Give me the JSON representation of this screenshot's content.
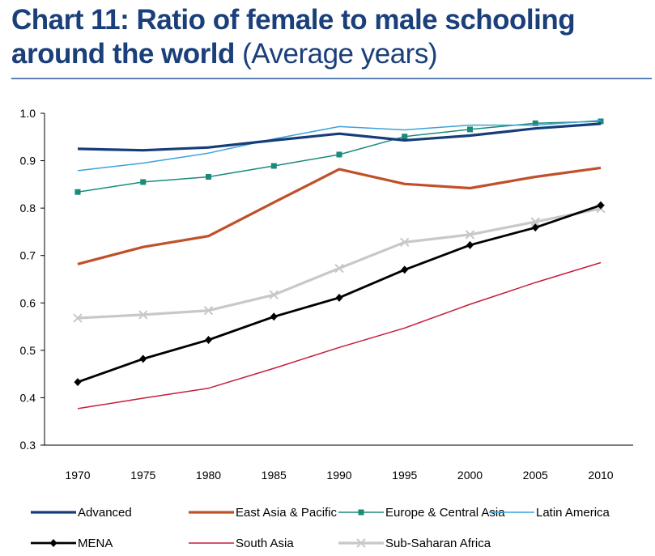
{
  "header": {
    "title_bold_1": "Chart 11: Ratio of female to male schooling",
    "title_bold_2": "around the world",
    "title_normal_2": "(Average years)"
  },
  "chart_data": {
    "type": "line",
    "title": "Chart 11: Ratio of female to male schooling around the world (Average years)",
    "x": [
      1970,
      1975,
      1980,
      1985,
      1990,
      1995,
      2000,
      2005,
      2010
    ],
    "x_tick_labels": [
      "1970",
      "1975",
      "1980",
      "1985",
      "1990",
      "1995",
      "2000",
      "2005",
      "2010"
    ],
    "ylim": [
      0.3,
      1.0
    ],
    "y_tick_labels": [
      "0.3",
      "0.4",
      "0.5",
      "0.6",
      "0.7",
      "0.8",
      "0.9",
      "1.0"
    ],
    "y_ticks": [
      0.3,
      0.4,
      0.5,
      0.6,
      0.7,
      0.8,
      0.9,
      1.0
    ],
    "grid": false,
    "legend_position": "bottom",
    "series": [
      {
        "name": "Advanced",
        "color": "#163d7a",
        "marker": "none",
        "values": [
          0.925,
          0.922,
          0.928,
          0.943,
          0.957,
          0.943,
          0.953,
          0.968,
          0.978
        ]
      },
      {
        "name": "East Asia & Pacific",
        "color": "#c0502a",
        "marker": "none",
        "values": [
          0.682,
          0.718,
          0.741,
          0.812,
          0.882,
          0.851,
          0.842,
          0.866,
          0.885
        ]
      },
      {
        "name": "Europe & Central Asia",
        "color": "#1a8a7a",
        "marker": "square",
        "values": [
          0.834,
          0.855,
          0.866,
          0.889,
          0.913,
          0.951,
          0.966,
          0.979,
          0.983
        ]
      },
      {
        "name": "Latin America",
        "color": "#3aa3d8",
        "marker": "none",
        "values": [
          0.879,
          0.895,
          0.916,
          0.946,
          0.972,
          0.965,
          0.975,
          0.975,
          0.985
        ]
      },
      {
        "name": "MENA",
        "color": "#000000",
        "marker": "diamond",
        "values": [
          0.433,
          0.482,
          0.522,
          0.571,
          0.611,
          0.67,
          0.722,
          0.759,
          0.806
        ]
      },
      {
        "name": "South Asia",
        "color": "#c41e3a",
        "marker": "none",
        "values": [
          0.377,
          0.399,
          0.42,
          0.462,
          0.506,
          0.547,
          0.597,
          0.643,
          0.685
        ]
      },
      {
        "name": "Sub-Saharan Africa",
        "color": "#c8c8c8",
        "marker": "cross",
        "values": [
          0.568,
          0.575,
          0.584,
          0.617,
          0.673,
          0.728,
          0.744,
          0.771,
          0.799
        ]
      }
    ]
  }
}
